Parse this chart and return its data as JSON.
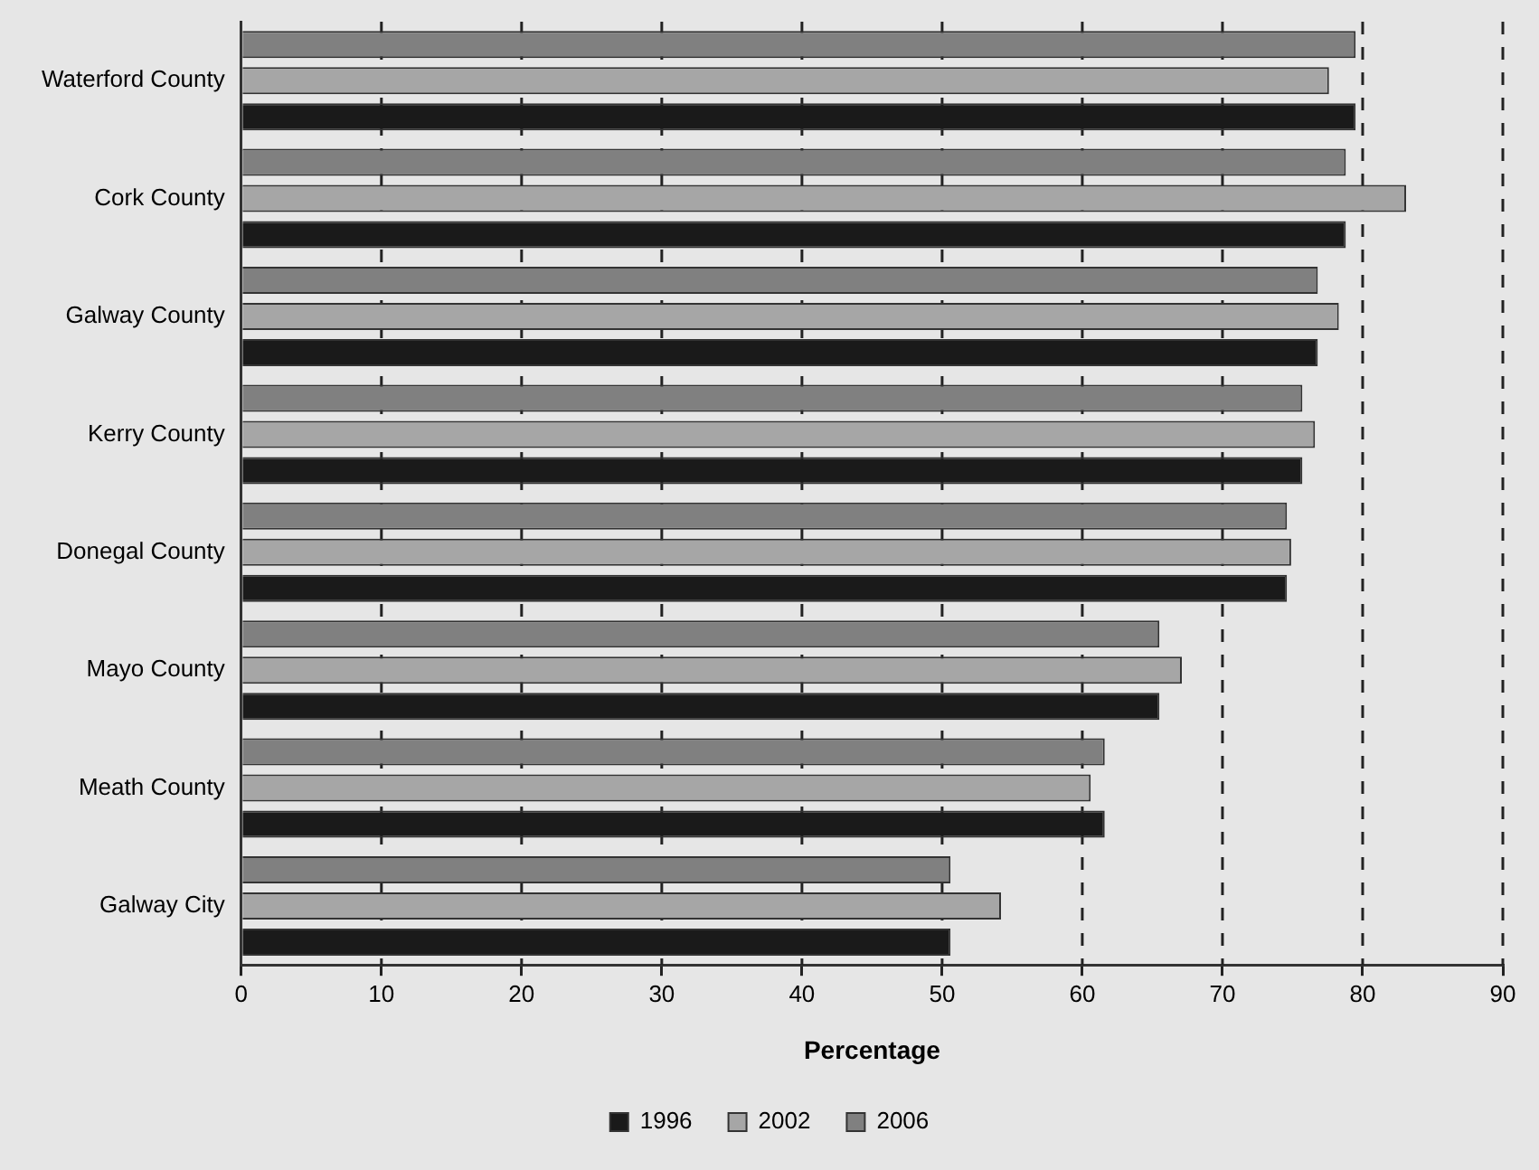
{
  "chart_data": {
    "type": "bar",
    "orientation": "horizontal",
    "xlabel": "Percentage",
    "categories": [
      "Waterford County",
      "Cork County",
      "Galway County",
      "Kerry County",
      "Donegal County",
      "Mayo County",
      "Meath County",
      "Galway City"
    ],
    "series": [
      {
        "name": "1996",
        "color": "#1a1a1a",
        "values": [
          79.5,
          78.8,
          76.8,
          75.7,
          74.6,
          65.5,
          61.6,
          50.6
        ]
      },
      {
        "name": "2002",
        "color": "#a6a6a6",
        "values": [
          77.6,
          83.1,
          78.3,
          76.6,
          74.9,
          67.1,
          60.6,
          54.2
        ]
      },
      {
        "name": "2006",
        "color": "#808080",
        "values": [
          79.5,
          78.8,
          76.8,
          75.7,
          74.6,
          65.5,
          61.6,
          50.6
        ]
      }
    ],
    "xlim": [
      0,
      90
    ],
    "xticks": [
      0,
      10,
      20,
      30,
      40,
      50,
      60,
      70,
      80,
      90
    ],
    "grid": "x",
    "legend": "bottom"
  }
}
